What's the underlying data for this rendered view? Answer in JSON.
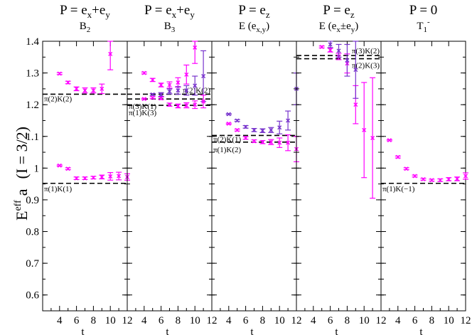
{
  "chart_data": {
    "type": "scatter",
    "ylabel_main": "E",
    "ylabel_sup": "eff",
    "ylabel_tail": "a",
    "ylabel_quantum": "(I = 3/2)",
    "xlabel": "t",
    "ylim": [
      0.55,
      1.4
    ],
    "xlim": [
      2,
      12
    ],
    "yticks": [
      "0.6",
      "0.7",
      "0.8",
      "0.9",
      "1",
      "1.1",
      "1.2",
      "1.3",
      "1.4"
    ],
    "xticks": [
      "4",
      "6",
      "8",
      "10",
      "12"
    ],
    "colors": {
      "magenta": "#ff00ff",
      "purple": "#7733cc",
      "dash": "#000000"
    },
    "panels": [
      {
        "title_main": "P = e",
        "title_parts": [
          {
            "t": "P = e"
          },
          {
            "t": "x",
            "sub": true
          },
          {
            "t": "+e"
          },
          {
            "t": "y",
            "sub": true
          }
        ],
        "irrep_base": "B",
        "irrep_sub": "2",
        "irrep_sup": "",
        "levels": [
          {
            "y": 1.233,
            "label": "π(2)K(2)",
            "align": "left",
            "dy": 10
          },
          {
            "y": 0.952,
            "label": "π(1)K(1)",
            "align": "left",
            "dy": 11
          }
        ],
        "series": [
          {
            "name": "",
            "color": "magenta",
            "points": [
              [
                4,
                1.298,
                0.003
              ],
              [
                5,
                1.27,
                0.004
              ],
              [
                6,
                1.25,
                0.006
              ],
              [
                7,
                1.245,
                0.008
              ],
              [
                8,
                1.245,
                0.008
              ],
              [
                9,
                1.25,
                0.015
              ],
              [
                10,
                1.36,
                0.05
              ]
            ]
          },
          {
            "name": "",
            "color": "magenta",
            "points": [
              [
                4,
                1.008,
                0.002
              ],
              [
                5,
                0.998,
                0.003
              ],
              [
                6,
                0.968,
                0.004
              ],
              [
                7,
                0.968,
                0.004
              ],
              [
                8,
                0.97,
                0.004
              ],
              [
                9,
                0.972,
                0.006
              ],
              [
                10,
                0.974,
                0.012
              ],
              [
                11,
                0.975,
                0.012
              ],
              [
                12,
                0.972,
                0.01
              ]
            ]
          }
        ]
      },
      {
        "title_main": "P = e",
        "title_parts": [
          {
            "t": "P = e"
          },
          {
            "t": "x",
            "sub": true
          },
          {
            "t": "+e"
          },
          {
            "t": "y",
            "sub": true
          }
        ],
        "irrep_base": "B",
        "irrep_sub": "3",
        "irrep_sup": "",
        "levels": [
          {
            "y": 1.233,
            "label": "π(2)K(2)",
            "align": "right",
            "dy": -2
          },
          {
            "y": 1.218,
            "label": "π(3)K(1)",
            "align": "left",
            "dy": 14
          },
          {
            "y": 1.198,
            "label": "π(1)K(3)",
            "align": "left",
            "dy": 14
          }
        ],
        "series": [
          {
            "name": "",
            "color": "magenta",
            "points": [
              [
                4,
                1.3,
                0.003
              ],
              [
                5,
                1.278,
                0.005
              ],
              [
                6,
                1.262,
                0.006
              ],
              [
                7,
                1.262,
                0.01
              ],
              [
                8,
                1.27,
                0.015
              ],
              [
                9,
                1.295,
                0.03
              ],
              [
                10,
                1.38,
                0.05
              ]
            ]
          },
          {
            "name": "",
            "color": "purple",
            "points": [
              [
                5,
                1.232,
                0.003
              ],
              [
                6,
                1.232,
                0.006
              ],
              [
                7,
                1.242,
                0.008
              ],
              [
                8,
                1.245,
                0.012
              ],
              [
                9,
                1.245,
                0.015
              ],
              [
                10,
                1.26,
                0.03
              ],
              [
                11,
                1.29,
                0.08
              ]
            ]
          },
          {
            "name": "",
            "color": "magenta",
            "points": [
              [
                4,
                1.218,
                0.002
              ],
              [
                5,
                1.222,
                0.003
              ],
              [
                6,
                1.22,
                0.004
              ],
              [
                7,
                1.2,
                0.005
              ],
              [
                8,
                1.196,
                0.006
              ],
              [
                9,
                1.198,
                0.008
              ],
              [
                10,
                1.2,
                0.012
              ],
              [
                11,
                1.21,
                0.02
              ]
            ]
          }
        ]
      },
      {
        "title_main": "P = e",
        "title_parts": [
          {
            "t": "P = e"
          },
          {
            "t": "z",
            "sub": true
          }
        ],
        "irrep_base": "E (e",
        "irrep_sub": "x,y",
        "irrep_sup": ")",
        "levels": [
          {
            "y": 1.103,
            "label": "π(2)K(1)",
            "align": "left",
            "dy": 9
          },
          {
            "y": 1.082,
            "label": "π(1)K(2)",
            "align": "left",
            "dy": 14
          }
        ],
        "series": [
          {
            "name": "",
            "color": "purple",
            "points": [
              [
                4,
                1.17,
                0.002
              ],
              [
                5,
                1.15,
                0.003
              ],
              [
                6,
                1.13,
                0.004
              ],
              [
                7,
                1.12,
                0.005
              ],
              [
                8,
                1.118,
                0.006
              ],
              [
                9,
                1.12,
                0.008
              ],
              [
                10,
                1.128,
                0.02
              ],
              [
                11,
                1.15,
                0.03
              ],
              [
                12,
                1.25,
                0.05
              ]
            ]
          },
          {
            "name": "",
            "color": "magenta",
            "points": [
              [
                4,
                1.14,
                0.002
              ],
              [
                5,
                1.12,
                0.003
              ],
              [
                6,
                1.095,
                0.004
              ],
              [
                7,
                1.085,
                0.004
              ],
              [
                8,
                1.082,
                0.005
              ],
              [
                9,
                1.082,
                0.008
              ],
              [
                10,
                1.08,
                0.015
              ],
              [
                11,
                1.08,
                0.025
              ],
              [
                12,
                1.06,
                0.04
              ]
            ]
          }
        ]
      },
      {
        "title_main": "P = e",
        "title_parts": [
          {
            "t": "P = e"
          },
          {
            "t": "z",
            "sub": true
          }
        ],
        "irrep_base": "E (e",
        "irrep_sub": "x",
        "irrep_sup": "±e",
        "irrep_parts": [
          {
            "t": "E (e"
          },
          {
            "t": "x",
            "sub": true
          },
          {
            "t": "±e"
          },
          {
            "t": "y",
            "sub": true
          },
          {
            "t": ")"
          }
        ],
        "levels": [
          {
            "y": 1.355,
            "label": "π(3)K(2)",
            "align": "right",
            "dy": -3
          },
          {
            "y": 1.345,
            "label": "π(2)K(3)",
            "align": "right",
            "dy": 13
          }
        ],
        "series": [
          {
            "name": "",
            "color": "magenta",
            "points": [
              [
                5,
                1.382,
                0.003
              ],
              [
                6,
                1.372,
                0.006
              ],
              [
                7,
                1.352,
                0.01
              ],
              [
                8,
                1.33,
                0.03
              ],
              [
                9,
                1.2,
                0.06
              ],
              [
                10,
                1.12,
                0.15
              ],
              [
                11,
                1.095,
                0.19
              ]
            ]
          },
          {
            "name": "",
            "color": "purple",
            "points": [
              [
                6,
                1.39,
                0.01
              ],
              [
                7,
                1.37,
                0.02
              ],
              [
                8,
                1.34,
                0.05
              ],
              [
                9,
                1.31,
                0.09
              ]
            ]
          }
        ]
      },
      {
        "title_main": "P = 0",
        "title_parts": [
          {
            "t": "P = 0"
          }
        ],
        "irrep_base": "T",
        "irrep_sub": "1",
        "irrep_sup": "-",
        "levels": [
          {
            "y": 0.952,
            "label": "π(1)K(−1)",
            "align": "left",
            "dy": 11
          }
        ],
        "series": [
          {
            "name": "",
            "color": "magenta",
            "points": [
              [
                3,
                1.088,
                0.002
              ],
              [
                4,
                1.035,
                0.003
              ],
              [
                5,
                0.998,
                0.003
              ],
              [
                6,
                0.975,
                0.003
              ],
              [
                7,
                0.965,
                0.003
              ],
              [
                8,
                0.962,
                0.003
              ],
              [
                9,
                0.962,
                0.004
              ],
              [
                10,
                0.965,
                0.005
              ],
              [
                11,
                0.966,
                0.006
              ],
              [
                12,
                0.975,
                0.01
              ]
            ]
          }
        ]
      }
    ]
  }
}
